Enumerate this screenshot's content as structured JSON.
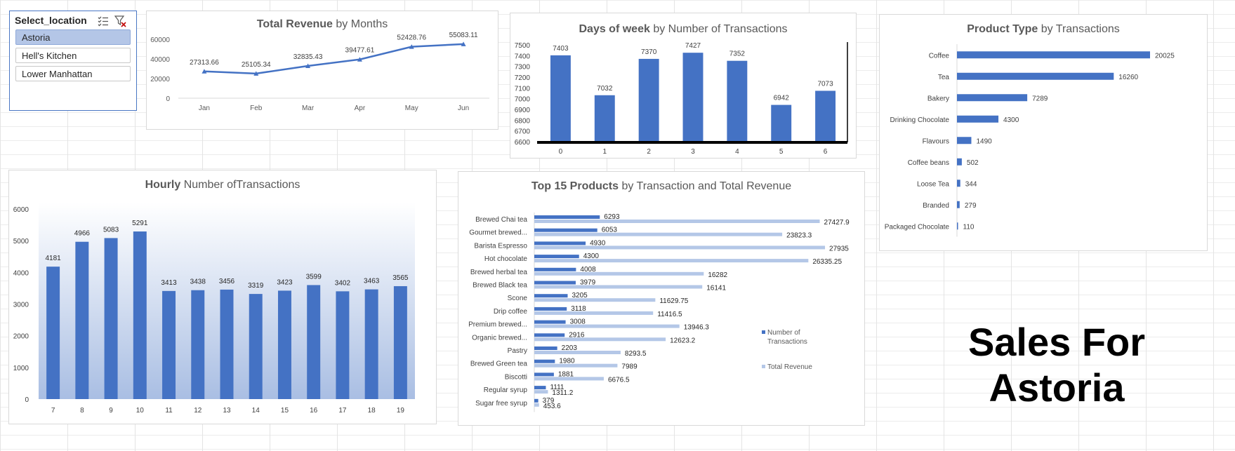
{
  "slicer": {
    "title": "Select_location",
    "items": [
      {
        "label": "Astoria",
        "selected": true
      },
      {
        "label": "Hell's Kitchen",
        "selected": false
      },
      {
        "label": "Lower Manhattan",
        "selected": false
      }
    ],
    "icons": [
      "multi-select-icon",
      "clear-filter-icon"
    ]
  },
  "headline": "Sales For Astoria",
  "colors": {
    "bar": "#4472c4",
    "bar_light": "#b4c7e7",
    "line": "#4472c4"
  },
  "chart_data": [
    {
      "id": "revenue",
      "type": "line",
      "title_bold": "Total Revenue",
      "title_rest": " by Months",
      "categories": [
        "Jan",
        "Feb",
        "Mar",
        "Apr",
        "May",
        "Jun"
      ],
      "values": [
        27313.66,
        25105.34,
        32835.43,
        39477.61,
        52428.76,
        55083.11
      ],
      "labels": [
        "27313.66",
        "25105.34",
        "32835.43",
        "39477.61",
        "52428.76",
        "55083.11"
      ],
      "yticks": [
        0,
        20000,
        40000,
        60000
      ],
      "ylim": [
        0,
        60000
      ],
      "grid": false
    },
    {
      "id": "weekday",
      "type": "bar",
      "title_bold": "Days of week",
      "title_rest": " by Number of Transactions",
      "categories": [
        "0",
        "1",
        "2",
        "3",
        "4",
        "5",
        "6"
      ],
      "values": [
        7403,
        7032,
        7370,
        7427,
        7352,
        6942,
        7073
      ],
      "yticks": [
        6600,
        6700,
        6800,
        6900,
        7000,
        7100,
        7200,
        7300,
        7400,
        7500
      ],
      "ylim": [
        6600,
        7500
      ],
      "grid": false
    },
    {
      "id": "producttype",
      "type": "bar",
      "orientation": "horizontal",
      "title_bold": "Product Type",
      "title_rest": " by Transactions",
      "categories": [
        "Coffee",
        "Tea",
        "Bakery",
        "Drinking Chocolate",
        "Flavours",
        "Coffee beans",
        "Loose Tea",
        "Branded",
        "Packaged Chocolate"
      ],
      "values": [
        20025,
        16260,
        7289,
        4300,
        1490,
        502,
        344,
        279,
        110
      ],
      "grid": false
    },
    {
      "id": "hourly",
      "type": "bar",
      "title_bold": "Hourly",
      "title_rest": " Number ofTransactions",
      "categories": [
        "7",
        "8",
        "9",
        "10",
        "11",
        "12",
        "13",
        "14",
        "15",
        "16",
        "17",
        "18",
        "19"
      ],
      "values": [
        4181,
        4966,
        5083,
        5291,
        3413,
        3438,
        3456,
        3319,
        3423,
        3599,
        3402,
        3463,
        3565
      ],
      "yticks": [
        0,
        1000,
        2000,
        3000,
        4000,
        5000,
        6000
      ],
      "ylim": [
        0,
        6000
      ],
      "grid": false
    },
    {
      "id": "top15",
      "type": "bar",
      "orientation": "horizontal",
      "title_bold": "Top 15 Products",
      "title_rest": " by Transaction and Total Revenue",
      "categories": [
        "Brewed Chai tea",
        "Gourmet brewed...",
        "Barista Espresso",
        "Hot chocolate",
        "Brewed herbal tea",
        "Brewed Black tea",
        "Scone",
        "Drip coffee",
        "Premium brewed...",
        "Organic brewed...",
        "Pastry",
        "Brewed Green tea",
        "Biscotti",
        "Regular syrup",
        "Sugar free syrup"
      ],
      "series": [
        {
          "name": "Number of Transactions",
          "values": [
            6293,
            6053,
            4930,
            4300,
            4008,
            3979,
            3205,
            3118,
            3008,
            2916,
            2203,
            1980,
            1881,
            1111,
            379
          ],
          "labels": [
            "6293",
            "6053",
            "4930",
            "4300",
            "4008",
            "3979",
            "3205",
            "3118",
            "3008",
            "2916",
            "2203",
            "1980",
            "1881",
            "1111",
            "379"
          ]
        },
        {
          "name": "Total Revenue",
          "values": [
            27427.9,
            23823.3,
            27935,
            26335.25,
            16282,
            16141,
            11629.75,
            11416.5,
            13946.3,
            12623.2,
            8293.5,
            7989,
            6676.5,
            1311.2,
            453.6
          ],
          "labels": [
            "27427.9",
            "23823.3",
            "27935",
            "26335.25",
            "16282",
            "16141",
            "11629.75",
            "11416.5",
            "13946.3",
            "12623.2",
            "8293.5",
            "7989",
            "6676.5",
            "1311.2",
            "453.6"
          ]
        }
      ],
      "legend_position": "right",
      "grid": false
    }
  ]
}
